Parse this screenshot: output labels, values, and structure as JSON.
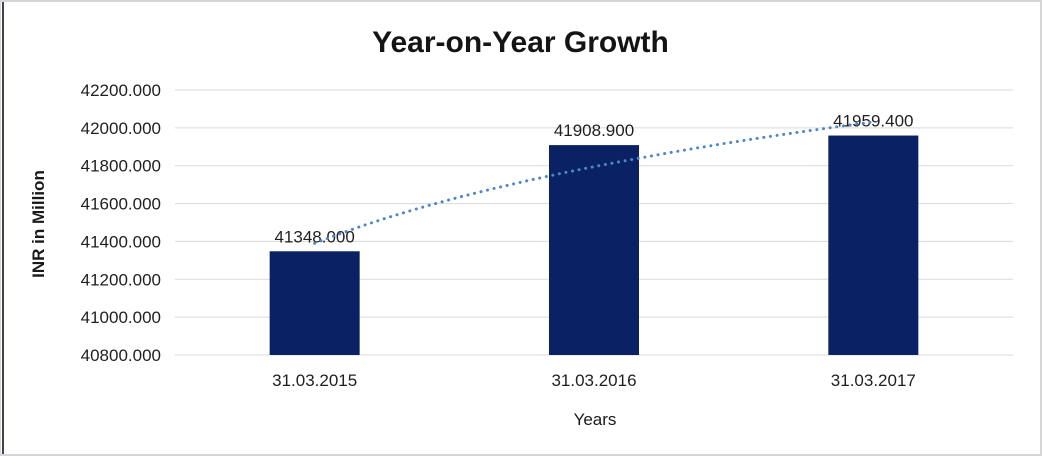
{
  "chart_data": {
    "type": "bar",
    "title": "Year-on-Year Growth",
    "xlabel": "Years",
    "ylabel": "INR in Million",
    "categories": [
      "31.03.2015",
      "31.03.2016",
      "31.03.2017"
    ],
    "values": [
      41348.0,
      41908.9,
      41959.4
    ],
    "value_labels": [
      "41348.000",
      "41908.900",
      "41959.400"
    ],
    "ylim": [
      40800,
      42200
    ],
    "ytick_step": 200,
    "yticks": [
      40800,
      41000,
      41200,
      41400,
      41600,
      41800,
      42000,
      42200
    ],
    "ytick_labels": [
      "40800.000",
      "41000.000",
      "41200.000",
      "41400.000",
      "41600.000",
      "41800.000",
      "42000.000",
      "42200.000"
    ],
    "grid": true,
    "legend": false,
    "colors": {
      "bar": "#0a2263",
      "gridline": "#d9d9d9",
      "axis_line": "#d9d9d9",
      "trendline": "#4e86c6",
      "title_text": "#141414",
      "label_text": "#1f1f1f",
      "frame_border": "#d6d6d6",
      "left_edge": "#3d4354"
    },
    "trendline": {
      "type": "logarithmic",
      "style": "dotted"
    }
  }
}
